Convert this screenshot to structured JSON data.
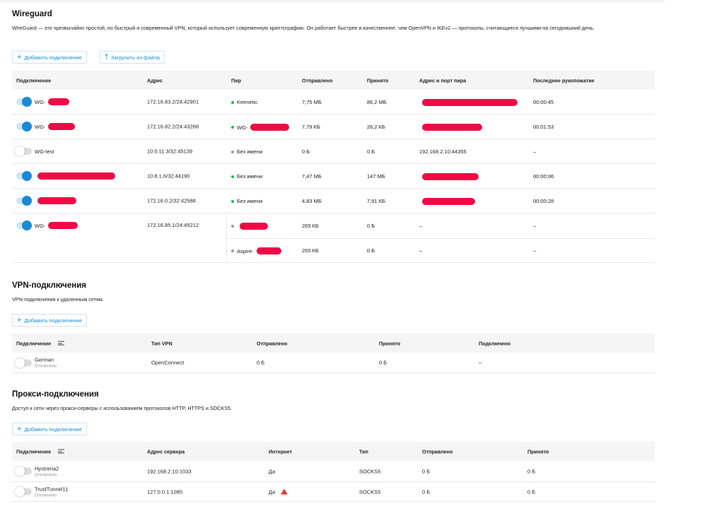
{
  "wireguard": {
    "title": "Wireguard",
    "description": "WireGuard — это чрезвычайно простой, но быстрый и современный VPN, который использует современную криптографию. Он работает быстрее и качественнее, чем OpenVPN и IKEv2 — протоколы, считающиеся лучшими на сегодняшний день.",
    "add_button": "Добавить подключение",
    "upload_button": "Загрузить из файла",
    "columns": [
      "Подключение",
      "Адрес",
      "Пир",
      "Отправлено",
      "Принято",
      "Адрес и порт пира",
      "Последнее рукопожатие"
    ],
    "rows": [
      {
        "enabled": true,
        "name": "WG-",
        "address": "172.16.83.2/24:42901",
        "peers": [
          {
            "status": "online",
            "name": "Keenetic",
            "sent": "7,75 МБ",
            "received": "86,2 МБ",
            "endpoint": "",
            "handshake": "00:00:45"
          }
        ]
      },
      {
        "enabled": true,
        "name": "WG-",
        "address": "172.16.82.2/24:43268",
        "peers": [
          {
            "status": "online",
            "name": "WG-",
            "sent": "7,79 КБ",
            "received": "26,2 КБ",
            "endpoint": "",
            "handshake": "00:01:53"
          }
        ]
      },
      {
        "enabled": false,
        "name": "WG-test",
        "address": "10.0.11.3/32:45139",
        "peers": [
          {
            "status": "offline",
            "name": "Без имени",
            "sent": "0 Б",
            "received": "0 Б",
            "endpoint": "192.168.2.10:44355",
            "handshake": "–"
          }
        ]
      },
      {
        "enabled": true,
        "name": "",
        "address": "10.8.1.6/32:44190",
        "peers": [
          {
            "status": "online",
            "name": "Без имени",
            "sent": "7,47 МБ",
            "received": "147 МБ",
            "endpoint": "",
            "handshake": "00:00:06"
          }
        ]
      },
      {
        "enabled": true,
        "name": "",
        "address": "172.16.0.2/32:42588",
        "peers": [
          {
            "status": "online",
            "name": "Без имени",
            "sent": "4,83 МБ",
            "received": "7,91 КБ",
            "endpoint": "",
            "handshake": "00:00:28"
          }
        ]
      },
      {
        "enabled": true,
        "name": "WG-",
        "address": "172.16.85.1/24:45212",
        "peers": [
          {
            "status": "offline",
            "name": "",
            "sent": "265 КБ",
            "received": "0 Б",
            "endpoint": "–",
            "handshake": "–"
          },
          {
            "status": "offline",
            "name": "Aspire-",
            "sent": "265 КБ",
            "received": "0 Б",
            "endpoint": "–",
            "handshake": "–"
          }
        ]
      }
    ]
  },
  "vpn": {
    "title": "VPN-подключения",
    "description": "VPN-подключения к удаленным сетям.",
    "add_button": "Добавить подключение",
    "columns": [
      "Подключение",
      "Тип VPN",
      "Отправлено",
      "Принято",
      "Подключено"
    ],
    "rows": [
      {
        "enabled": false,
        "name": "German",
        "state": "Отключено",
        "type": "OpenConnect",
        "sent": "0 Б",
        "received": "0 Б",
        "connected": "–"
      }
    ]
  },
  "proxy": {
    "title": "Прокси-подключения",
    "description": "Доступ к сети через прокси-серверы с использованием протоколов HTTP, HTTPS и SOCKS5.",
    "add_button": "Добавить подключение",
    "columns": [
      "Подключение",
      "Адрес сервера",
      "Интернет",
      "Тип",
      "Отправлено",
      "Принято"
    ],
    "rows": [
      {
        "enabled": false,
        "name": "Hystreria2",
        "state": "Отключено",
        "server": "192.168.2.10:1033",
        "internet": "Да",
        "warning": false,
        "type": "SOCKS5",
        "sent": "0 Б",
        "received": "0 Б"
      },
      {
        "enabled": false,
        "name": "TrustTunnel11",
        "state": "Отключено",
        "server": "127.0.0.1:1085",
        "internet": "Да",
        "warning": true,
        "type": "SOCKS5",
        "sent": "0 Б",
        "received": "0 Б"
      }
    ]
  },
  "colors": {
    "accent": "#1a8ad4",
    "online": "#1db954",
    "offline": "#999999",
    "redaction": "#f00a45",
    "warning": "#e53935"
  }
}
